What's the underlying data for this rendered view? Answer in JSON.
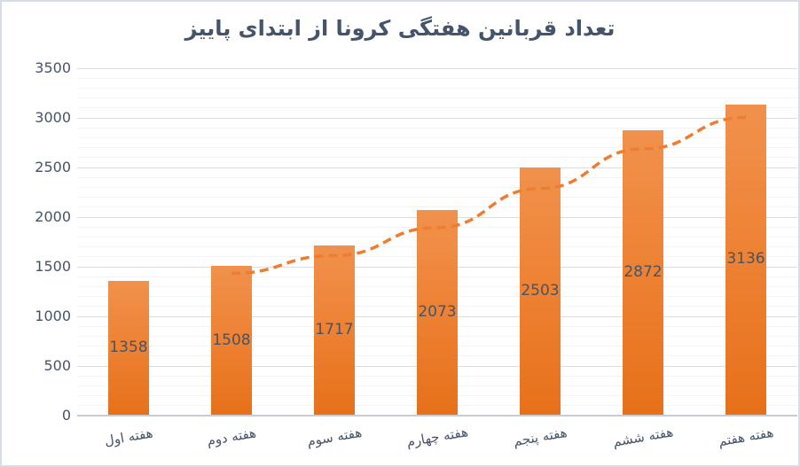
{
  "chart_data": {
    "type": "bar",
    "title": "تعداد قربانین هفتگی کرونا از ابتدای پاییز",
    "categories": [
      "هفته اول",
      "هفته دوم",
      "هفته سوم",
      "هفته چهارم",
      "هفته پنجم",
      "هفته ششم",
      "هفته هفتم"
    ],
    "values": [
      1358,
      1508,
      1717,
      2073,
      2503,
      2872,
      3136
    ],
    "data_labels": [
      1358,
      1508,
      1717,
      2073,
      2503,
      2872,
      3136
    ],
    "xlabel": "",
    "ylabel": "",
    "ylim": [
      0,
      3500
    ],
    "y_major_unit": 500,
    "y_minor_unit": 100,
    "y_tick_labels": [
      "0",
      "500",
      "1000",
      "1500",
      "2000",
      "2500",
      "3000",
      "3500"
    ],
    "grid": "major and minor horizontal",
    "legend": "none",
    "direction": "rtl",
    "trendline": {
      "kind": "moving_average",
      "period": 2,
      "start_category_index": 1,
      "values": [
        1433,
        1612.5,
        1895,
        2288,
        2687.5,
        3004
      ],
      "style": "dashed"
    }
  },
  "colors": {
    "title_text": "#44546A",
    "axis_text": "#44546A",
    "bar_top": "#F1914D",
    "bar_bottom": "#E7701A",
    "trendline": "#ED7D31",
    "gridline_major": "#D9DEE6",
    "gridline_minor": "#F1F3F6",
    "axis_line": "#C7CCD5",
    "frame_border": "#D7DDE7",
    "background": "#FFFFFF"
  }
}
